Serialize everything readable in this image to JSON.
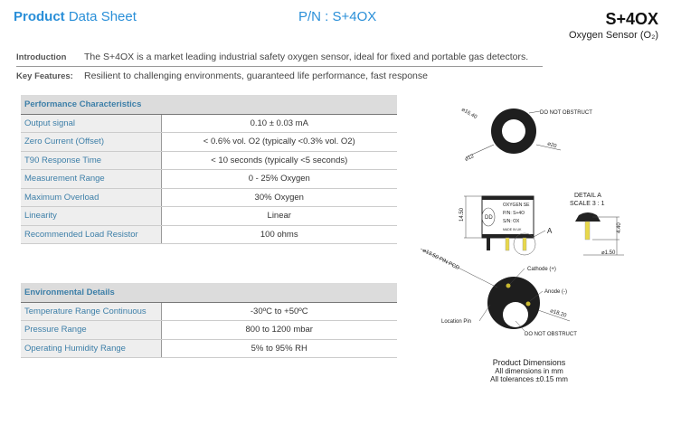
{
  "header": {
    "title_bold": "Product",
    "title_rest": " Data Sheet",
    "part_number": "P/N : S+4OX",
    "product": "S+4OX",
    "subtitle": "Oxygen Sensor (O₂)"
  },
  "intro": {
    "label": "Introduction",
    "text": "The S+4OX is a market leading industrial safety oxygen sensor, ideal for fixed and portable gas detectors."
  },
  "key_features": {
    "label": "Key Features:",
    "text": "Resilient to challenging environments, guaranteed life performance, fast response"
  },
  "performance": {
    "title": "Performance Characteristics",
    "rows": [
      {
        "label": "Output signal",
        "value": "0.10 ± 0.03 mA"
      },
      {
        "label": "Zero Current (Offset)",
        "value": "< 0.6% vol. O2 (typically <0.3% vol. O2)"
      },
      {
        "label": "T90 Response Time",
        "value": "< 10 seconds (typically <5 seconds)"
      },
      {
        "label": "Measurement Range",
        "value": "0 - 25% Oxygen"
      },
      {
        "label": "Maximum Overload",
        "value": "30% Oxygen"
      },
      {
        "label": "Linearity",
        "value": "Linear"
      },
      {
        "label": "Recommended Load Resistor",
        "value": "100 ohms"
      }
    ]
  },
  "environmental": {
    "title": "Environmental Details",
    "rows": [
      {
        "label": "Temperature Range Continuous",
        "value": "-30ºC to +50ºC"
      },
      {
        "label": "Pressure Range",
        "value": "800 to 1200 mbar"
      },
      {
        "label": "Operating Humidity Range",
        "value": "5% to 95% RH"
      }
    ]
  },
  "drawing": {
    "d1640": "⌀16.40",
    "d12": "⌀12",
    "d20": "⌀20",
    "no_obstruct": "DO NOT OBSTRUCT",
    "h1450": "14.50",
    "label1": "OXYGEN SE",
    "label2": "P/N: S+4O",
    "label3": "S/N: OX",
    "label4": "MADE IN UK",
    "logo": "DD",
    "detail_ref": "A",
    "detail_title": "DETAIL A",
    "detail_scale": "SCALE 3 : 1",
    "h440": "4.40",
    "d150": "⌀1.50",
    "pcd": "⌀13.50 PIN PCD",
    "cathode": "Cathode (+)",
    "anode": "Anode (-)",
    "d1820": "⌀18.20",
    "location_pin": "Location Pin"
  },
  "dimensions": {
    "title": "Product Dimensions",
    "line1": "All dimensions in mm",
    "line2": "All tolerances ±0.15 mm"
  }
}
